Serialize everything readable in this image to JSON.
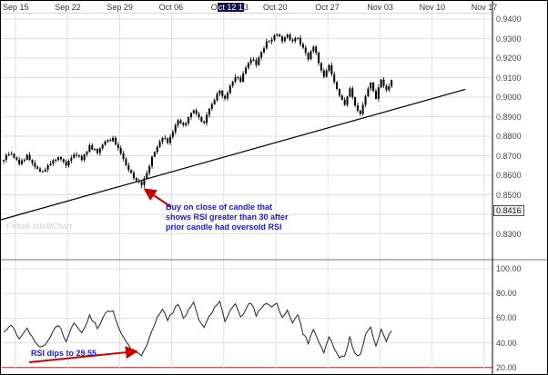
{
  "watermark": {
    "text": "FXtrek IntelliChart"
  },
  "annotations": {
    "buy_note": {
      "lines": [
        "Buy on close of candle that",
        "shows RSI greater than 30 after",
        "prior candle had oversold RSI"
      ],
      "color": "#1a1acc"
    },
    "rsi_note": {
      "text": "RSI dips to 29.55.",
      "color": "#1a1acc"
    },
    "arrow_color": "#cc0000"
  },
  "colors": {
    "grid": "#dedede",
    "candle": "#000000",
    "trendline": "#000000",
    "rsi_line": "#222222",
    "oversold_line": "#b22222",
    "axis_line": "#000000",
    "highlight_box": "#14144e"
  },
  "chart_data": {
    "type": "candlestick",
    "title": "",
    "x_axis": {
      "labels": [
        "Sep 15",
        "Sep 22",
        "Sep 29",
        "Oct 06",
        "Oct 12 13",
        "Oct 20",
        "Oct 27",
        "Nov 03",
        "Nov 10",
        "Nov 17"
      ],
      "highlighted_index": 4,
      "highlight_parts": {
        "pre": "O",
        "selected": "ct 12 1",
        "post": "3"
      }
    },
    "price_pane": {
      "ylim": [
        0.83,
        0.945
      ],
      "gridlines": [
        0.94,
        0.93,
        0.92,
        0.91,
        0.9,
        0.89,
        0.88,
        0.87,
        0.86,
        0.85,
        0.84,
        0.83
      ],
      "axis_labels": [
        "0.9400",
        "0.9300",
        "0.9200",
        "0.9100",
        "0.9000",
        "0.8900",
        "0.8800",
        "0.8700",
        "0.8600",
        "0.8500",
        "0.8300"
      ],
      "boxed_axis_value": "0.8416",
      "num_candles": 150,
      "close_keyframes": [
        [
          0,
          0.8685
        ],
        [
          3,
          0.8715
        ],
        [
          6,
          0.866
        ],
        [
          9,
          0.87
        ],
        [
          12,
          0.8645
        ],
        [
          15,
          0.8615
        ],
        [
          18,
          0.866
        ],
        [
          21,
          0.87
        ],
        [
          24,
          0.8655
        ],
        [
          27,
          0.871
        ],
        [
          30,
          0.868
        ],
        [
          33,
          0.875
        ],
        [
          36,
          0.872
        ],
        [
          39,
          0.877
        ],
        [
          42,
          0.879
        ],
        [
          44,
          0.874
        ],
        [
          46,
          0.869
        ],
        [
          48,
          0.863
        ],
        [
          50,
          0.859
        ],
        [
          52,
          0.856
        ],
        [
          53,
          0.855
        ],
        [
          55,
          0.861
        ],
        [
          57,
          0.869
        ],
        [
          59,
          0.875
        ],
        [
          61,
          0.88
        ],
        [
          63,
          0.877
        ],
        [
          65,
          0.883
        ],
        [
          67,
          0.888
        ],
        [
          69,
          0.885
        ],
        [
          71,
          0.89
        ],
        [
          73,
          0.894
        ],
        [
          75,
          0.889
        ],
        [
          77,
          0.887
        ],
        [
          79,
          0.894
        ],
        [
          81,
          0.899
        ],
        [
          83,
          0.904
        ],
        [
          85,
          0.899
        ],
        [
          87,
          0.906
        ],
        [
          89,
          0.911
        ],
        [
          91,
          0.908
        ],
        [
          93,
          0.915
        ],
        [
          95,
          0.92
        ],
        [
          97,
          0.917
        ],
        [
          99,
          0.923
        ],
        [
          101,
          0.928
        ],
        [
          103,
          0.93
        ],
        [
          105,
          0.933
        ],
        [
          107,
          0.929
        ],
        [
          109,
          0.932
        ],
        [
          111,
          0.928
        ],
        [
          113,
          0.931
        ],
        [
          115,
          0.925
        ],
        [
          117,
          0.92
        ],
        [
          119,
          0.926
        ],
        [
          121,
          0.918
        ],
        [
          123,
          0.91
        ],
        [
          125,
          0.916
        ],
        [
          127,
          0.908
        ],
        [
          129,
          0.9
        ],
        [
          131,
          0.896
        ],
        [
          133,
          0.904
        ],
        [
          135,
          0.895
        ],
        [
          137,
          0.892
        ],
        [
          139,
          0.901
        ],
        [
          141,
          0.907
        ],
        [
          143,
          0.9
        ],
        [
          145,
          0.909
        ],
        [
          147,
          0.904
        ],
        [
          149,
          0.908
        ]
      ],
      "buy_signal": {
        "index": 53,
        "low": 0.8533,
        "close": 0.855
      },
      "trendline": {
        "from_index": -1,
        "from_price": 0.8372,
        "to_index": 177.3,
        "to_price": 0.904
      }
    },
    "rsi_pane": {
      "ylim": [
        15,
        105
      ],
      "gridlines": [
        100,
        80,
        60,
        40,
        20
      ],
      "axis_labels": [
        "100.00",
        "80.00",
        "60.00",
        "40.00",
        "20.00"
      ],
      "oversold_level": 20,
      "dip_index": 53,
      "dip_value": 29.55,
      "keyframes": [
        [
          0,
          48
        ],
        [
          3,
          55
        ],
        [
          6,
          44
        ],
        [
          9,
          52
        ],
        [
          12,
          40
        ],
        [
          15,
          36
        ],
        [
          18,
          46
        ],
        [
          21,
          55
        ],
        [
          24,
          42
        ],
        [
          27,
          56
        ],
        [
          30,
          48
        ],
        [
          33,
          62
        ],
        [
          36,
          52
        ],
        [
          39,
          64
        ],
        [
          42,
          66
        ],
        [
          44,
          52
        ],
        [
          46,
          44
        ],
        [
          48,
          38
        ],
        [
          50,
          33
        ],
        [
          53,
          29.55
        ],
        [
          55,
          38
        ],
        [
          57,
          50
        ],
        [
          59,
          60
        ],
        [
          61,
          67
        ],
        [
          63,
          58
        ],
        [
          65,
          65
        ],
        [
          67,
          72
        ],
        [
          69,
          60
        ],
        [
          71,
          66
        ],
        [
          73,
          72
        ],
        [
          75,
          58
        ],
        [
          77,
          52
        ],
        [
          79,
          62
        ],
        [
          81,
          68
        ],
        [
          83,
          73
        ],
        [
          85,
          58
        ],
        [
          87,
          66
        ],
        [
          89,
          71
        ],
        [
          91,
          60
        ],
        [
          93,
          68
        ],
        [
          95,
          73
        ],
        [
          97,
          62
        ],
        [
          99,
          68
        ],
        [
          101,
          72
        ],
        [
          103,
          70
        ],
        [
          105,
          73
        ],
        [
          107,
          60
        ],
        [
          109,
          66
        ],
        [
          111,
          56
        ],
        [
          113,
          62
        ],
        [
          115,
          48
        ],
        [
          117,
          40
        ],
        [
          119,
          52
        ],
        [
          121,
          40
        ],
        [
          123,
          32
        ],
        [
          125,
          45
        ],
        [
          127,
          35
        ],
        [
          129,
          29
        ],
        [
          131,
          28
        ],
        [
          133,
          44
        ],
        [
          135,
          31
        ],
        [
          137,
          30
        ],
        [
          139,
          46
        ],
        [
          141,
          52
        ],
        [
          143,
          38
        ],
        [
          145,
          52
        ],
        [
          147,
          42
        ],
        [
          149,
          50
        ]
      ]
    }
  }
}
